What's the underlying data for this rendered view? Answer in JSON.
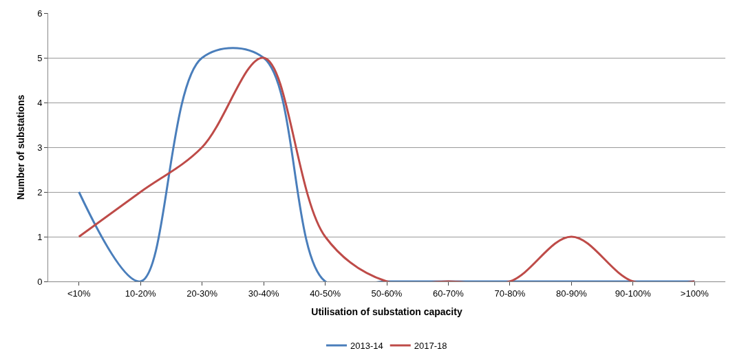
{
  "chart_data": {
    "type": "line",
    "xlabel": "Utilisation of substation capacity",
    "ylabel": "Number of substations",
    "categories": [
      "<10%",
      "10-20%",
      "20-30%",
      "30-40%",
      "40-50%",
      "50-60%",
      "60-70%",
      "70-80%",
      "80-90%",
      "90-100%",
      ">100%"
    ],
    "series": [
      {
        "name": "2013-14",
        "color": "#4a7ebb",
        "values": [
          2,
          0,
          5,
          5,
          0,
          0,
          0,
          0,
          0,
          0,
          0
        ]
      },
      {
        "name": "2017-18",
        "color": "#be4b48",
        "values": [
          1,
          2,
          3,
          5,
          1,
          0,
          0,
          0,
          1,
          0,
          0
        ]
      }
    ],
    "ylim": [
      0,
      6
    ],
    "yticks": [
      0,
      1,
      2,
      3,
      4,
      5,
      6
    ],
    "grid": "y",
    "legend": "bottom",
    "marker": "none",
    "line_style": "solid"
  }
}
